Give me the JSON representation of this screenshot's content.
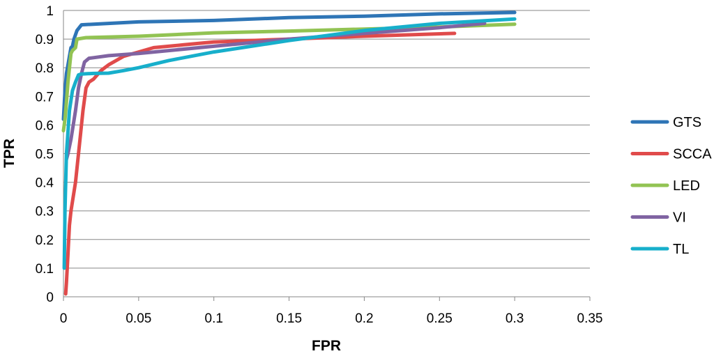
{
  "chart_data": {
    "type": "line",
    "xlabel": "FPR",
    "ylabel": "TPR",
    "xlim": [
      0,
      0.35
    ],
    "ylim": [
      0,
      1
    ],
    "xticks": [
      "0",
      "0.05",
      "0.1",
      "0.15",
      "0.2",
      "0.25",
      "0.3",
      "0.35"
    ],
    "yticks": [
      "0",
      "0.1",
      "0.2",
      "0.3",
      "0.4",
      "0.5",
      "0.6",
      "0.7",
      "0.8",
      "0.9",
      "1"
    ],
    "grid": true,
    "legend_position": "right",
    "series": [
      {
        "name": "GTS",
        "color": "#2E75B6",
        "points": [
          [
            0,
            0.62
          ],
          [
            0.001,
            0.72
          ],
          [
            0.002,
            0.78
          ],
          [
            0.003,
            0.81
          ],
          [
            0.004,
            0.84
          ],
          [
            0.005,
            0.87
          ],
          [
            0.006,
            0.875
          ],
          [
            0.007,
            0.9
          ],
          [
            0.009,
            0.93
          ],
          [
            0.012,
            0.95
          ],
          [
            0.02,
            0.952
          ],
          [
            0.05,
            0.96
          ],
          [
            0.1,
            0.965
          ],
          [
            0.15,
            0.975
          ],
          [
            0.2,
            0.98
          ],
          [
            0.25,
            0.988
          ],
          [
            0.3,
            0.993
          ]
        ]
      },
      {
        "name": "SCCA",
        "color": "#E04B4B",
        "points": [
          [
            0.0015,
            0.01
          ],
          [
            0.002,
            0.05
          ],
          [
            0.003,
            0.15
          ],
          [
            0.004,
            0.25
          ],
          [
            0.005,
            0.3
          ],
          [
            0.008,
            0.4
          ],
          [
            0.01,
            0.5
          ],
          [
            0.013,
            0.65
          ],
          [
            0.015,
            0.73
          ],
          [
            0.017,
            0.75
          ],
          [
            0.02,
            0.76
          ],
          [
            0.025,
            0.79
          ],
          [
            0.03,
            0.81
          ],
          [
            0.04,
            0.84
          ],
          [
            0.05,
            0.855
          ],
          [
            0.06,
            0.87
          ],
          [
            0.08,
            0.88
          ],
          [
            0.1,
            0.89
          ],
          [
            0.15,
            0.9
          ],
          [
            0.2,
            0.91
          ],
          [
            0.26,
            0.92
          ]
        ]
      },
      {
        "name": "LED",
        "color": "#92C353",
        "points": [
          [
            0,
            0.58
          ],
          [
            0.001,
            0.62
          ],
          [
            0.002,
            0.68
          ],
          [
            0.003,
            0.75
          ],
          [
            0.004,
            0.8
          ],
          [
            0.005,
            0.85
          ],
          [
            0.006,
            0.86
          ],
          [
            0.007,
            0.865
          ],
          [
            0.008,
            0.87
          ],
          [
            0.009,
            0.9
          ],
          [
            0.015,
            0.905
          ],
          [
            0.05,
            0.91
          ],
          [
            0.1,
            0.922
          ],
          [
            0.15,
            0.928
          ],
          [
            0.2,
            0.935
          ],
          [
            0.25,
            0.942
          ],
          [
            0.3,
            0.952
          ]
        ]
      },
      {
        "name": "VI",
        "color": "#8064A2",
        "points": [
          [
            0.002,
            0.48
          ],
          [
            0.003,
            0.5
          ],
          [
            0.005,
            0.55
          ],
          [
            0.008,
            0.65
          ],
          [
            0.01,
            0.73
          ],
          [
            0.012,
            0.78
          ],
          [
            0.014,
            0.82
          ],
          [
            0.017,
            0.833
          ],
          [
            0.02,
            0.835
          ],
          [
            0.03,
            0.842
          ],
          [
            0.05,
            0.85
          ],
          [
            0.1,
            0.875
          ],
          [
            0.15,
            0.9
          ],
          [
            0.2,
            0.92
          ],
          [
            0.25,
            0.94
          ],
          [
            0.28,
            0.955
          ]
        ]
      },
      {
        "name": "TL",
        "color": "#17AFCB",
        "points": [
          [
            0.0005,
            0.1
          ],
          [
            0.001,
            0.3
          ],
          [
            0.002,
            0.5
          ],
          [
            0.004,
            0.65
          ],
          [
            0.006,
            0.72
          ],
          [
            0.008,
            0.75
          ],
          [
            0.01,
            0.775
          ],
          [
            0.012,
            0.778
          ],
          [
            0.02,
            0.78
          ],
          [
            0.03,
            0.781
          ],
          [
            0.04,
            0.79
          ],
          [
            0.05,
            0.8
          ],
          [
            0.07,
            0.825
          ],
          [
            0.1,
            0.855
          ],
          [
            0.15,
            0.895
          ],
          [
            0.2,
            0.93
          ],
          [
            0.25,
            0.955
          ],
          [
            0.3,
            0.97
          ]
        ]
      }
    ]
  }
}
